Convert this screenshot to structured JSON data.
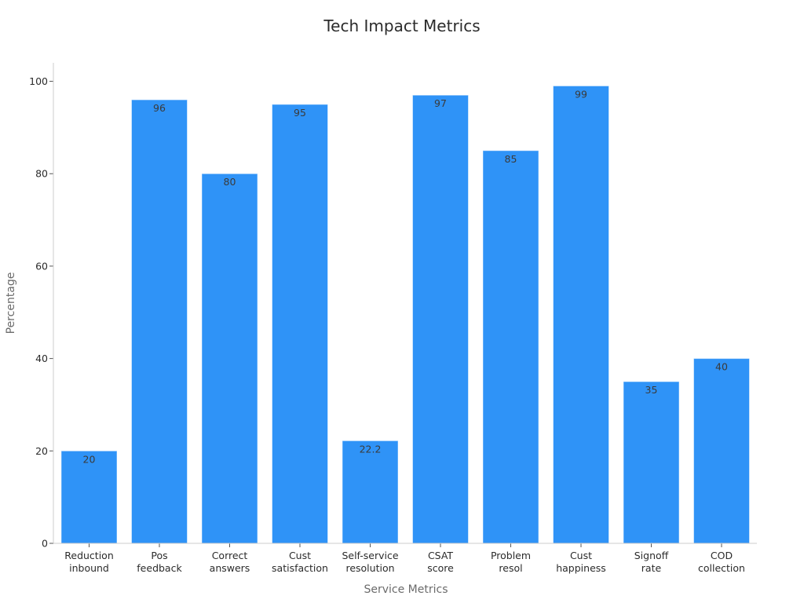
{
  "chart_data": {
    "type": "bar",
    "title": "Tech Impact Metrics",
    "xlabel": "Service Metrics",
    "ylabel": "Percentage",
    "categories": [
      [
        "Reduction",
        "inbound"
      ],
      [
        "Pos",
        "feedback"
      ],
      [
        "Correct",
        "answers"
      ],
      [
        "Cust",
        "satisfaction"
      ],
      [
        "Self-service",
        "resolution"
      ],
      [
        "CSAT",
        "score"
      ],
      [
        "Problem",
        "resol"
      ],
      [
        "Cust",
        "happiness"
      ],
      [
        "Signoff",
        "rate"
      ],
      [
        "COD",
        "collection"
      ]
    ],
    "values": [
      20,
      96,
      80,
      95,
      22.2,
      97,
      85,
      99,
      35,
      40
    ],
    "value_labels": [
      "20",
      "96",
      "80",
      "95",
      "22.2",
      "97",
      "85",
      "99",
      "35",
      "40"
    ],
    "yticks": [
      0,
      20,
      40,
      60,
      80,
      100
    ],
    "ylim": [
      0,
      104
    ],
    "grid": false,
    "legend": "none",
    "bar_color": "#2f93f7"
  }
}
